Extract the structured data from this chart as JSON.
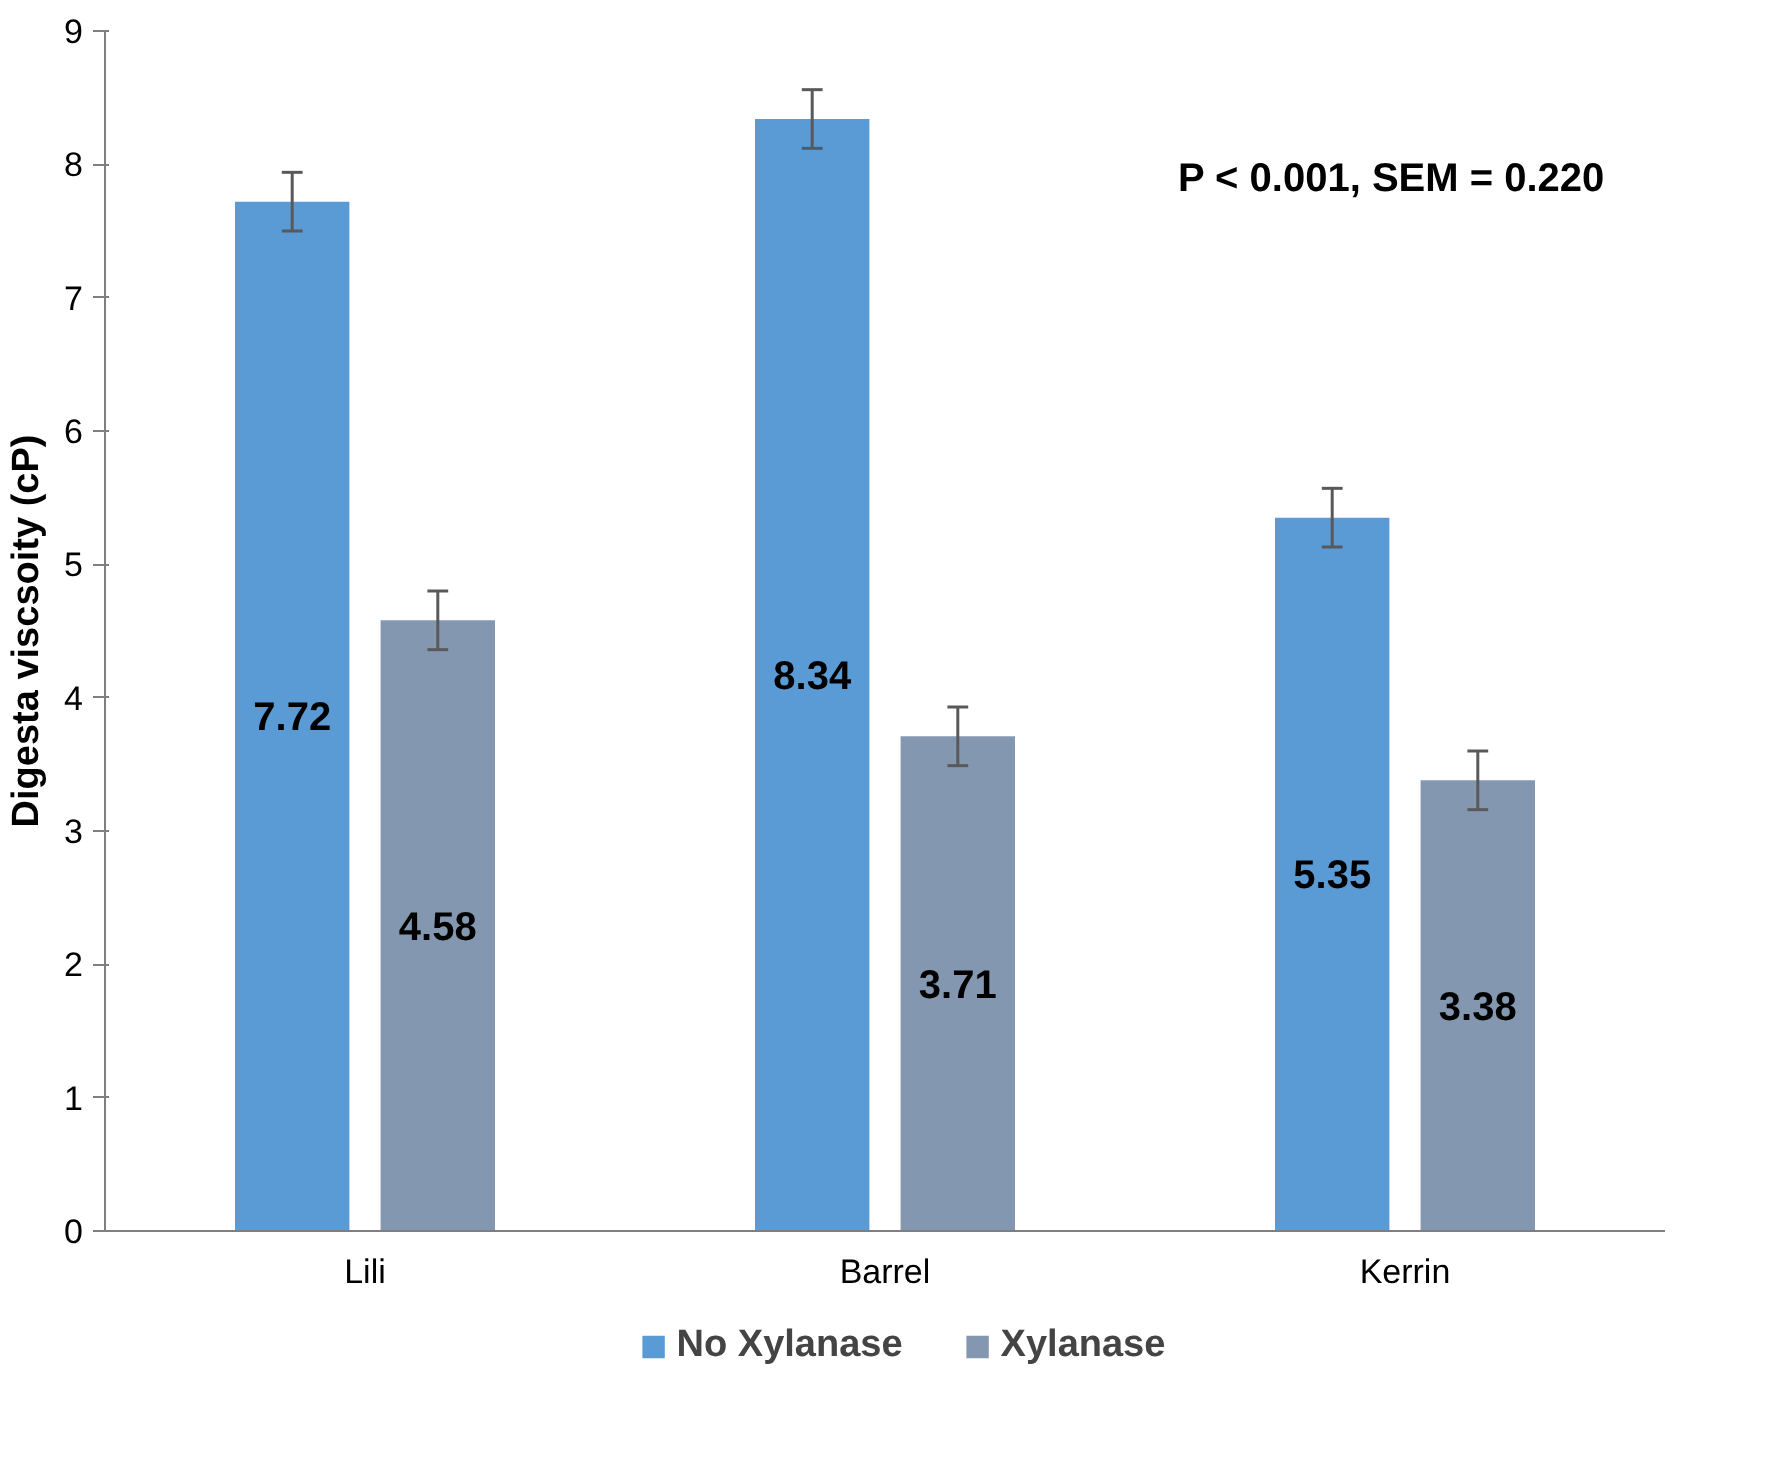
{
  "chart_data": {
    "type": "bar",
    "ylabel": "Digesta viscsoity (cP)",
    "categories": [
      "Lili",
      "Barrel",
      "Kerrin"
    ],
    "series": [
      {
        "name": "No Xylanase",
        "color": "#5b9bd5",
        "values": [
          7.72,
          8.34,
          5.35
        ],
        "errors": [
          0.22,
          0.22,
          0.22
        ]
      },
      {
        "name": "Xylanase",
        "color": "#8497b0",
        "values": [
          4.58,
          3.71,
          3.38
        ],
        "errors": [
          0.22,
          0.22,
          0.22
        ]
      }
    ],
    "ylim": [
      0,
      9
    ],
    "yticks": [
      0,
      1,
      2,
      3,
      4,
      5,
      6,
      7,
      8,
      9
    ],
    "grid": false,
    "legend": "bottom",
    "data_labels": true,
    "annotations": [
      "P < 0.001, SEM = 0.220"
    ]
  }
}
